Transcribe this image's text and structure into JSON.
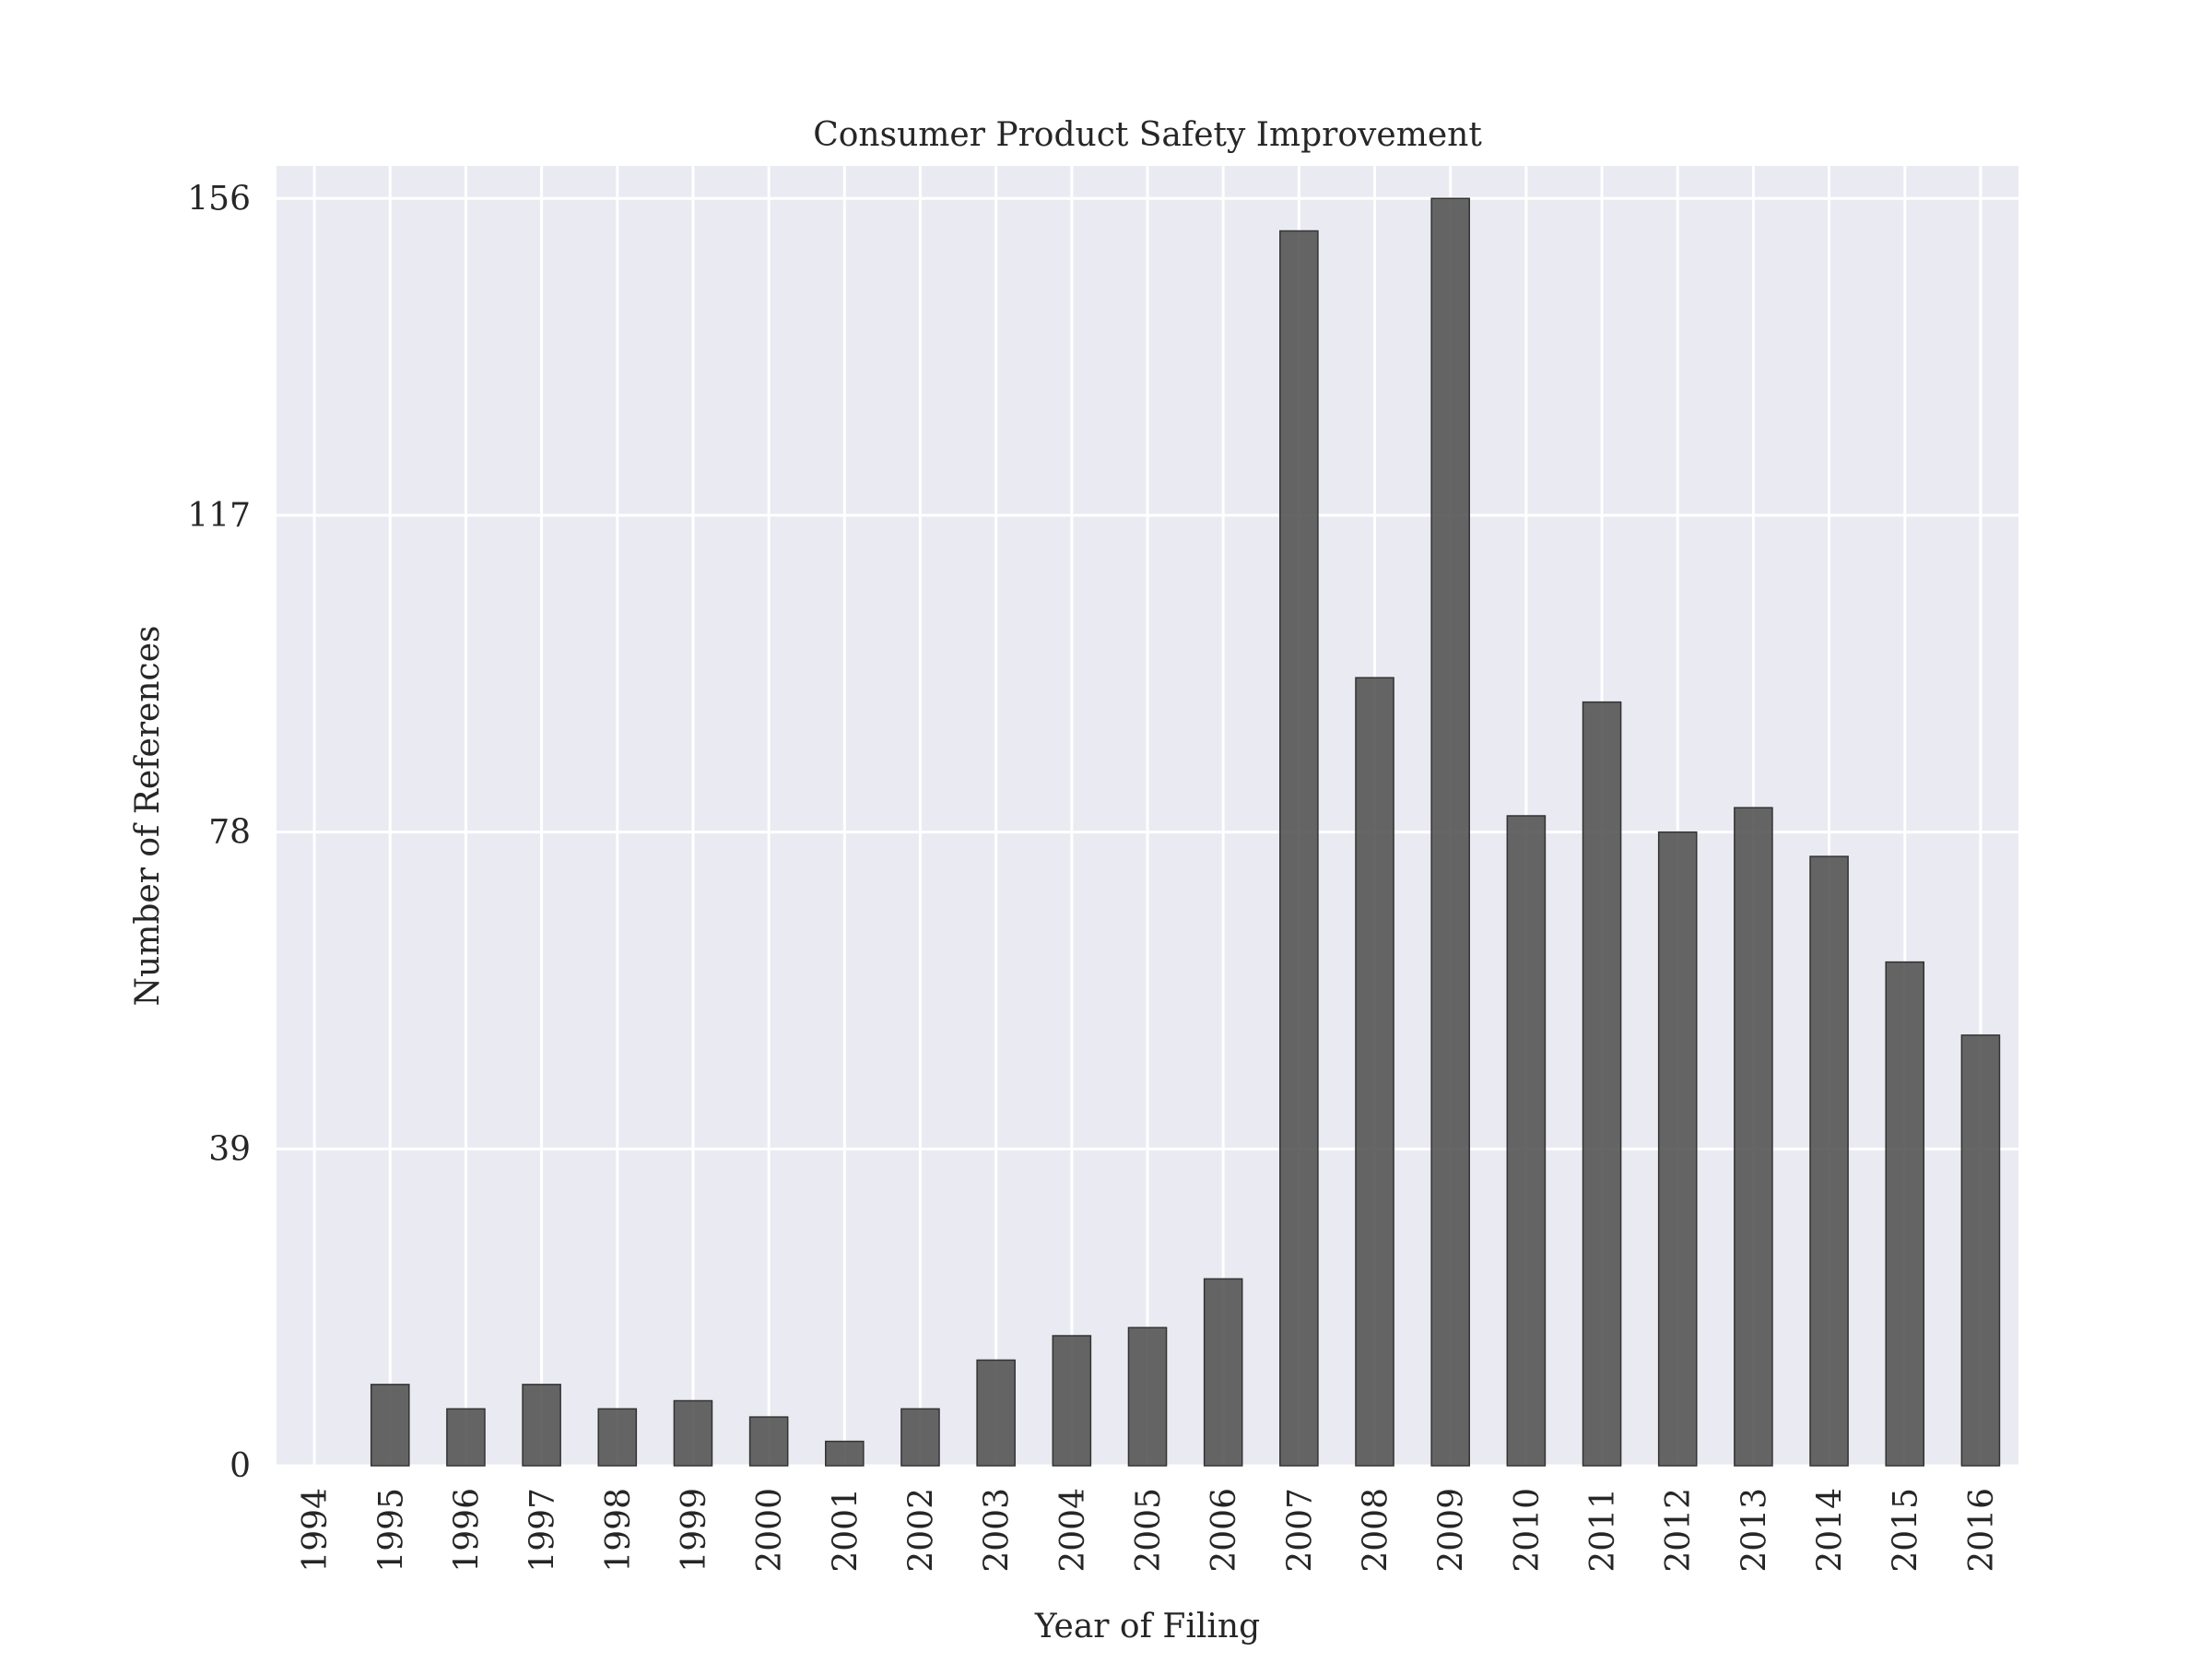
{
  "chart_data": {
    "type": "bar",
    "title": "Consumer Product Safety Improvement",
    "xlabel": "Year of Filing",
    "ylabel": "Number of References",
    "categories": [
      "1994",
      "1995",
      "1996",
      "1997",
      "1998",
      "1999",
      "2000",
      "2001",
      "2002",
      "2003",
      "2004",
      "2005",
      "2006",
      "2007",
      "2008",
      "2009",
      "2010",
      "2011",
      "2012",
      "2013",
      "2014",
      "2015",
      "2016"
    ],
    "values": [
      0,
      10,
      7,
      10,
      7,
      8,
      6,
      3,
      7,
      13,
      16,
      17,
      23,
      152,
      97,
      156,
      80,
      94,
      78,
      81,
      75,
      62,
      53
    ],
    "yticks": [
      0,
      39,
      78,
      117,
      156
    ],
    "ylim": [
      0,
      160
    ],
    "grid": true,
    "legend": "none",
    "colors": {
      "plot_background": "#eaeaf2",
      "grid": "#ffffff",
      "bar_fill": "#555555",
      "bar_edge": "#333333",
      "text": "#262626"
    }
  }
}
